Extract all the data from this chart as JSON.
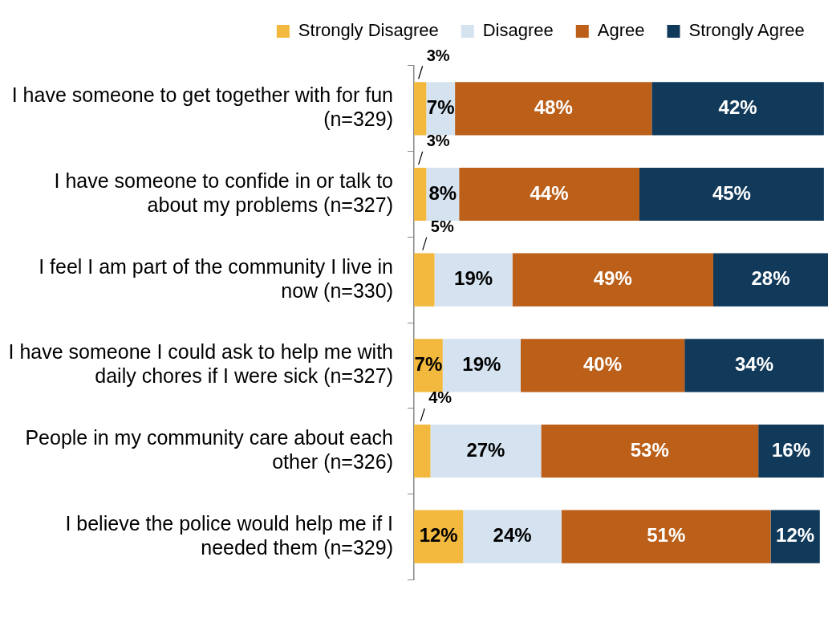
{
  "chart_data": {
    "type": "bar",
    "orientation": "horizontal",
    "stacked": true,
    "legend": "top",
    "grid": false,
    "categories": [
      "I have someone to get together with for fun (n=329)",
      "I have someone to confide in or talk to about my problems (n=327)",
      "I feel I am part of the community I live in now (n=330)",
      "I have someone I could ask to help me with daily chores if I were sick (n=327)",
      "People in my community care about each other (n=326)",
      "I believe the police would help me if I needed them (n=329)"
    ],
    "series": [
      {
        "name": "Strongly Disagree",
        "color": "#f2b93e",
        "values": [
          3,
          3,
          5,
          7,
          4,
          12
        ],
        "value_labels": [
          "3%",
          "3%",
          "5%",
          "7%",
          "4%",
          "12%"
        ]
      },
      {
        "name": "Disagree",
        "color": "#d5e3f0",
        "values": [
          7,
          8,
          19,
          19,
          27,
          24
        ],
        "value_labels": [
          "7%",
          "8%",
          "19%",
          "19%",
          "27%",
          "24%"
        ]
      },
      {
        "name": "Agree",
        "color": "#bb5f19",
        "values": [
          48,
          44,
          49,
          40,
          53,
          51
        ],
        "value_labels": [
          "48%",
          "44%",
          "49%",
          "40%",
          "53%",
          "51%"
        ]
      },
      {
        "name": "Strongly Agree",
        "color": "#10395a",
        "values": [
          42,
          45,
          28,
          34,
          16,
          12
        ],
        "value_labels": [
          "42%",
          "45%",
          "28%",
          "34%",
          "16%",
          "12%"
        ]
      }
    ]
  }
}
